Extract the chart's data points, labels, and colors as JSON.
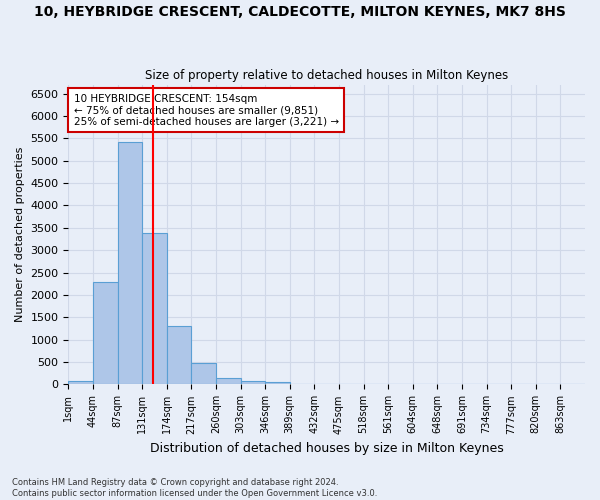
{
  "title": "10, HEYBRIDGE CRESCENT, CALDECOTTE, MILTON KEYNES, MK7 8HS",
  "subtitle": "Size of property relative to detached houses in Milton Keynes",
  "xlabel": "Distribution of detached houses by size in Milton Keynes",
  "ylabel": "Number of detached properties",
  "footnote1": "Contains HM Land Registry data © Crown copyright and database right 2024.",
  "footnote2": "Contains public sector information licensed under the Open Government Licence v3.0.",
  "bin_labels": [
    "1sqm",
    "44sqm",
    "87sqm",
    "131sqm",
    "174sqm",
    "217sqm",
    "260sqm",
    "303sqm",
    "346sqm",
    "389sqm",
    "432sqm",
    "475sqm",
    "518sqm",
    "561sqm",
    "604sqm",
    "648sqm",
    "691sqm",
    "734sqm",
    "777sqm",
    "820sqm",
    "863sqm"
  ],
  "bar_values": [
    70,
    2280,
    5420,
    3380,
    1310,
    470,
    155,
    75,
    55,
    0,
    0,
    0,
    0,
    0,
    0,
    0,
    0,
    0,
    0,
    0,
    0
  ],
  "bar_color": "#aec6e8",
  "bar_edgecolor": "#5a9fd4",
  "vline_x": 3.45,
  "annotation_title": "10 HEYBRIDGE CRESCENT: 154sqm",
  "annotation_line1": "← 75% of detached houses are smaller (9,851)",
  "annotation_line2": "25% of semi-detached houses are larger (3,221) →",
  "annotation_box_color": "#cc0000",
  "ylim": [
    0,
    6700
  ],
  "yticks": [
    0,
    500,
    1000,
    1500,
    2000,
    2500,
    3000,
    3500,
    4000,
    4500,
    5000,
    5500,
    6000,
    6500
  ],
  "grid_color": "#d0d8e8",
  "background_color": "#e8eef8"
}
